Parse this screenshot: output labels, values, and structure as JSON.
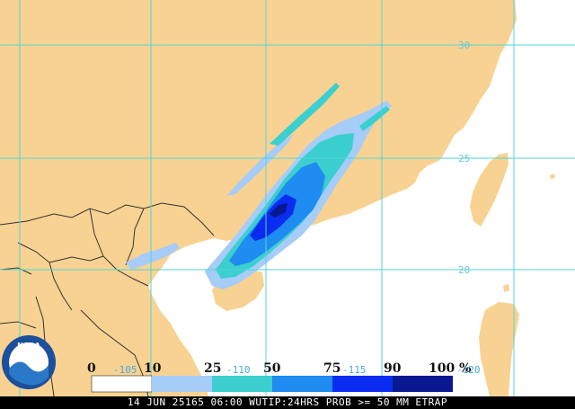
{
  "map": {
    "colors": {
      "land": "#f8d292",
      "ocean": "#ffffff",
      "grid": "#4fd6d8",
      "border": "#333333",
      "prob_0_10": "#ffffff",
      "prob_10_25": "#a6ccf8",
      "prob_25_50": "#3ccfcf",
      "prob_50_75": "#1e8cf0",
      "prob_75_90": "#0a2cf0",
      "prob_90_100": "#081890"
    },
    "lat_labels": [
      {
        "text": "30"
      },
      {
        "text": "25"
      },
      {
        "text": "20"
      }
    ],
    "lon_labels": [
      {
        "text": "-105"
      },
      {
        "text": "-110"
      },
      {
        "text": "-115"
      },
      {
        "text": "-120"
      }
    ]
  },
  "legend": {
    "ticks": [
      "0",
      "10",
      "25",
      "50",
      "75",
      "90",
      "100 %"
    ],
    "bins": [
      {
        "range": "0-10",
        "color": "#ffffff"
      },
      {
        "range": "10-25",
        "color": "#a6ccf8"
      },
      {
        "range": "25-50",
        "color": "#3ccfcf"
      },
      {
        "range": "50-75",
        "color": "#1e8cf0"
      },
      {
        "range": "75-90",
        "color": "#0a2cf0"
      },
      {
        "range": "90-100",
        "color": "#081890"
      }
    ]
  },
  "logo": {
    "text": "NOAA",
    "colors": {
      "outer": "#1c4f9c",
      "inner": "#ffffff",
      "wave": "#2a78c8"
    }
  },
  "caption": {
    "text": "14 JUN 25165 06:00 WUTIP:24HRS PROB >= 50 MM ETRAP"
  }
}
